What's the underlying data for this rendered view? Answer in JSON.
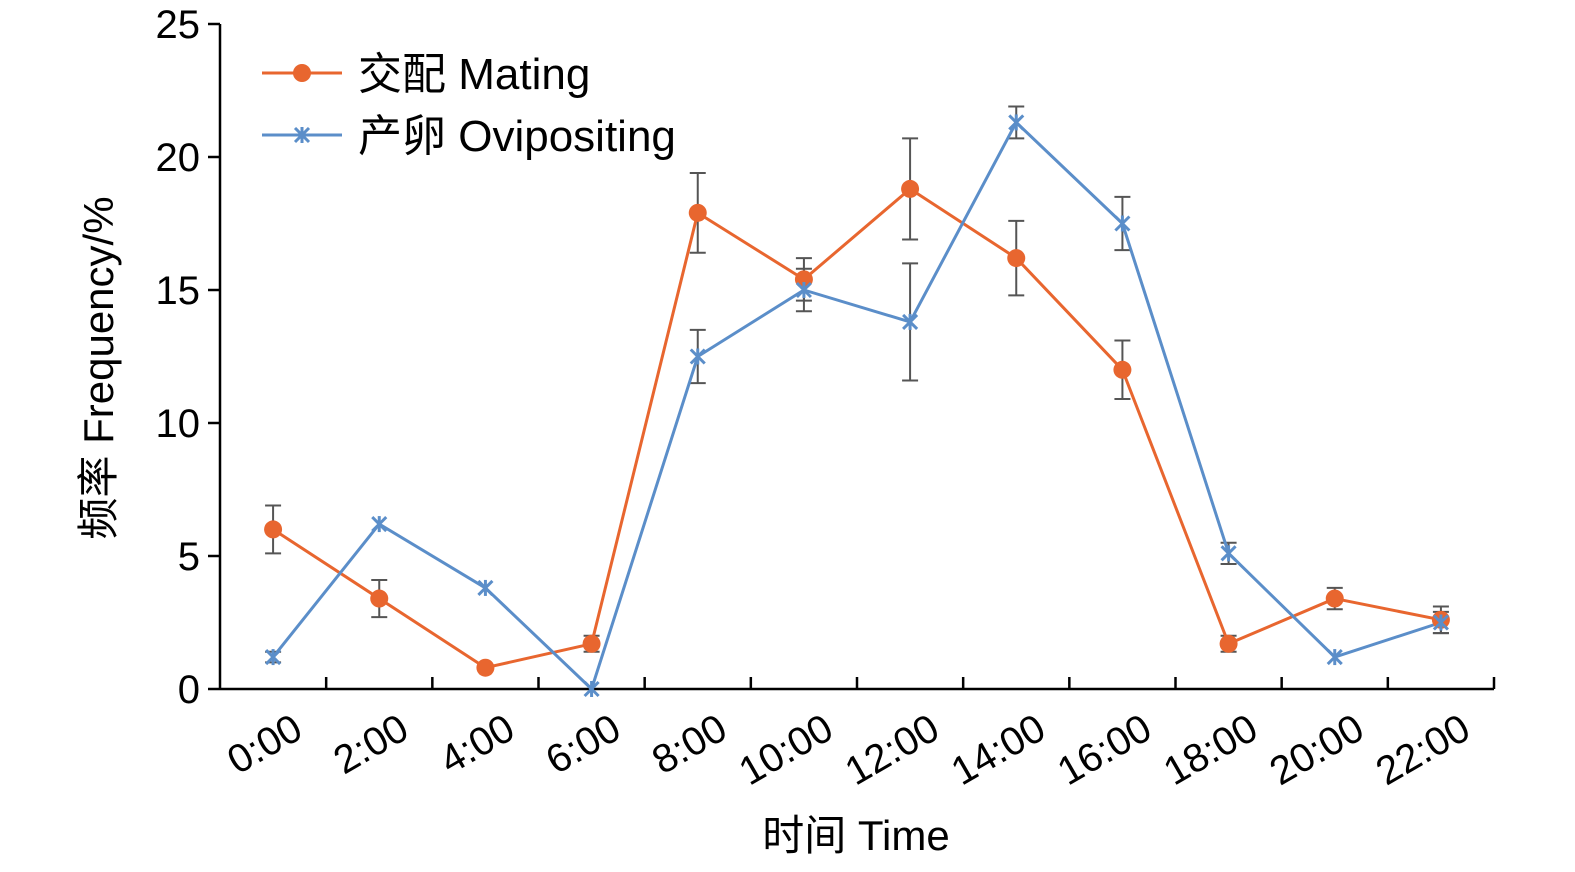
{
  "chart_data": {
    "type": "line",
    "xlabel": "时间 Time",
    "ylabel": "频率 Frequency/%",
    "ylim": [
      0,
      25
    ],
    "yticks": [
      0,
      5,
      10,
      15,
      20,
      25
    ],
    "categories": [
      "0:00",
      "2:00",
      "4:00",
      "6:00",
      "8:00",
      "10:00",
      "12:00",
      "14:00",
      "16:00",
      "18:00",
      "20:00",
      "22:00"
    ],
    "legend_position": "top-left",
    "grid": false,
    "series": [
      {
        "name": "交配 Mating",
        "color": "#e8662f",
        "marker": "circle",
        "values": [
          6.0,
          3.4,
          0.8,
          1.7,
          17.9,
          15.4,
          18.8,
          16.2,
          12.0,
          1.7,
          3.4,
          2.6
        ],
        "errors": [
          0.9,
          0.7,
          0.0,
          0.3,
          1.5,
          0.8,
          1.9,
          1.4,
          1.1,
          0.3,
          0.4,
          0.5
        ]
      },
      {
        "name": "产卵 Ovipositing",
        "color": "#5b8ec9",
        "marker": "asterisk",
        "values": [
          1.2,
          6.2,
          3.8,
          0.0,
          12.5,
          15.0,
          13.8,
          21.3,
          17.5,
          5.1,
          1.2,
          2.5
        ],
        "errors": [
          0.2,
          0.0,
          0.0,
          0.0,
          1.0,
          0.8,
          2.2,
          0.6,
          1.0,
          0.4,
          0.0,
          0.4
        ]
      }
    ]
  }
}
